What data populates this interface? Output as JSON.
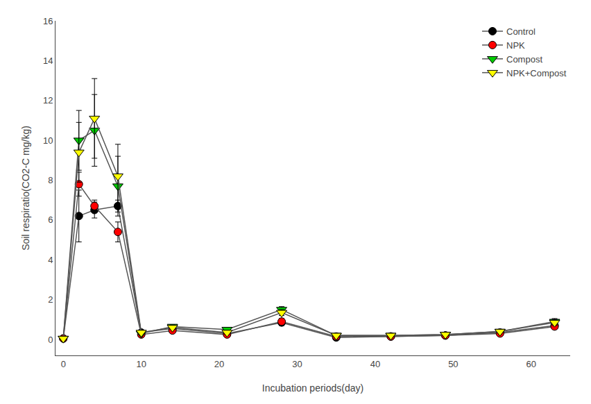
{
  "chart_data": {
    "type": "line",
    "xlabel": "Incubation periods(day)",
    "ylabel": "Soil respiratio(CO2-C mg/kg)",
    "x": [
      0,
      2,
      4,
      7,
      10,
      14,
      21,
      28,
      35,
      42,
      49,
      56,
      63
    ],
    "xlim": [
      -1,
      65
    ],
    "ylim": [
      -0.8,
      16
    ],
    "xticks": [
      0,
      10,
      20,
      30,
      40,
      50,
      60
    ],
    "yticks": [
      0,
      2,
      4,
      6,
      8,
      10,
      12,
      14,
      16
    ],
    "grid": false,
    "legend": "upper right",
    "color": "#555555",
    "series": [
      {
        "name": "Control",
        "color": "#000000",
        "marker": "circle",
        "values": [
          0.05,
          6.2,
          6.5,
          6.7,
          0.35,
          0.55,
          0.3,
          0.85,
          0.1,
          0.15,
          0.2,
          0.35,
          0.7
        ],
        "yerr": [
          0.05,
          1.3,
          0.4,
          0.3,
          0.05,
          0.1,
          0.05,
          0.15,
          0.05,
          0.05,
          0.05,
          0.05,
          0.1
        ]
      },
      {
        "name": "NPK",
        "color": "#ff0000",
        "marker": "circle",
        "values": [
          0.05,
          7.8,
          6.7,
          5.4,
          0.25,
          0.45,
          0.25,
          0.9,
          0.15,
          0.15,
          0.2,
          0.3,
          0.65
        ],
        "yerr": [
          0.05,
          0.6,
          0.3,
          0.5,
          0.05,
          0.1,
          0.05,
          0.15,
          0.05,
          0.05,
          0.05,
          0.05,
          0.1
        ]
      },
      {
        "name": "Compost",
        "color": "#00cc00",
        "marker": "triangle-down",
        "values": [
          0.05,
          10.0,
          10.5,
          7.7,
          0.3,
          0.65,
          0.5,
          1.5,
          0.2,
          0.2,
          0.25,
          0.4,
          0.9
        ],
        "yerr": [
          0.05,
          1.5,
          1.8,
          1.5,
          0.05,
          0.1,
          0.1,
          0.15,
          0.05,
          0.05,
          0.05,
          0.05,
          0.15
        ]
      },
      {
        "name": "NPK+Compost",
        "color": "#ffff00",
        "marker": "triangle-down",
        "values": [
          0.05,
          9.4,
          11.1,
          8.2,
          0.35,
          0.6,
          0.35,
          1.35,
          0.2,
          0.2,
          0.25,
          0.4,
          0.85
        ],
        "yerr": [
          0.05,
          1.5,
          2.0,
          1.6,
          0.05,
          0.1,
          0.1,
          0.15,
          0.05,
          0.05,
          0.05,
          0.05,
          0.15
        ]
      }
    ]
  }
}
